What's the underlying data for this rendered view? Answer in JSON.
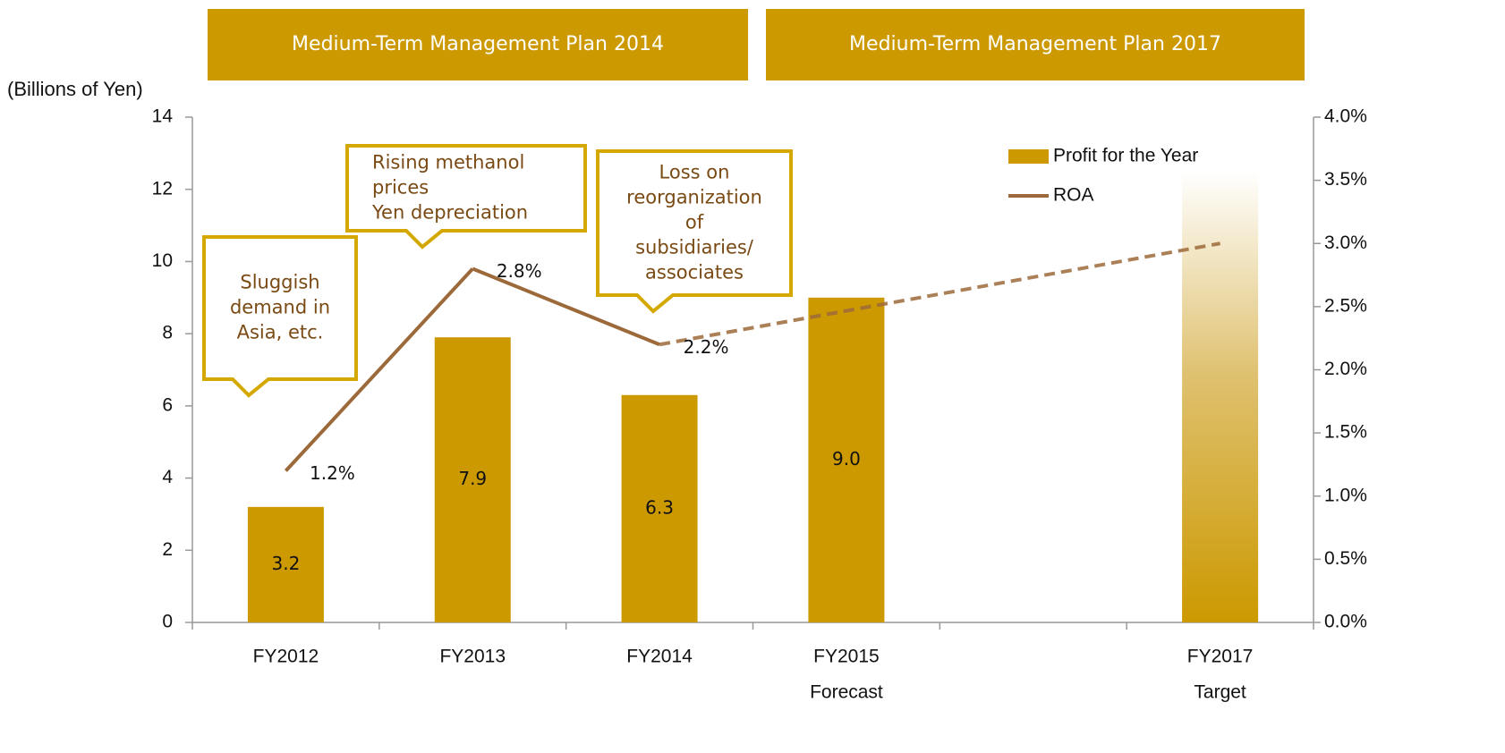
{
  "chart_data": {
    "type": "bar",
    "banners": [
      "Medium-Term Management Plan 2014",
      "Medium-Term Management Plan 2017"
    ],
    "y_axis_label": "(Billions of Yen)",
    "categories": [
      "FY2012",
      "FY2013",
      "FY2014",
      "FY2015",
      null,
      "FY2017"
    ],
    "sublabels": [
      null,
      null,
      null,
      "Forecast",
      null,
      "Target"
    ],
    "series": [
      {
        "name": "Profit for the Year",
        "type": "bar",
        "color": "#cc9900",
        "values": [
          3.2,
          7.9,
          6.3,
          9.0,
          null,
          12.5
        ],
        "value_labels": [
          "3.2",
          "7.9",
          "6.3",
          "9.0",
          null,
          null
        ],
        "styles": [
          "solid",
          "solid",
          "solid",
          "solid",
          null,
          "gradient"
        ]
      },
      {
        "name": "ROA",
        "type": "line",
        "axis": "y2",
        "color": "#9c6a3a",
        "values": [
          1.2,
          2.8,
          2.2,
          null,
          null,
          3.0
        ],
        "value_labels": [
          "1.2%",
          "2.8%",
          "2.2%",
          null,
          null,
          null
        ],
        "segment_styles": [
          "solid",
          "solid",
          "dashed"
        ]
      }
    ],
    "ylim": [
      0,
      14
    ],
    "yticks": [
      0,
      2,
      4,
      6,
      8,
      10,
      12,
      14
    ],
    "y2lim": [
      0,
      4
    ],
    "y2ticks": [
      {
        "value": 0,
        "label": "0.0%"
      },
      {
        "value": 0.5,
        "label": "0.5%"
      },
      {
        "value": 1,
        "label": "1.0%"
      },
      {
        "value": 1.5,
        "label": "1.5%"
      },
      {
        "value": 2,
        "label": "2.0%"
      },
      {
        "value": 2.5,
        "label": "2.5%"
      },
      {
        "value": 3,
        "label": "3.0%"
      },
      {
        "value": 3.5,
        "label": "3.5%"
      },
      {
        "value": 4,
        "label": "4.0%"
      }
    ],
    "grid": false,
    "legend": "upper right",
    "annotations": [
      {
        "lines": [
          "Sluggish",
          "demand in",
          "Asia, etc."
        ]
      },
      {
        "lines": [
          "Rising methanol",
          "prices",
          "Yen depreciation"
        ]
      },
      {
        "lines": [
          "Loss on",
          "reorganization",
          "of",
          "subsidiaries/",
          "associates"
        ]
      }
    ]
  }
}
